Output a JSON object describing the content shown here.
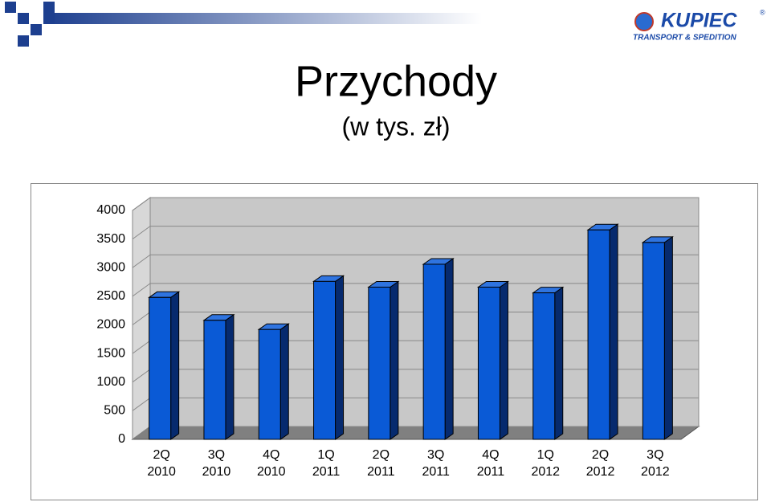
{
  "logo": {
    "name": "KUPIEC",
    "mark": "®",
    "tagline": "TRANSPORT & SPEDITION"
  },
  "chart_data": {
    "type": "bar3d",
    "title": "Przychody",
    "subtitle": "(w tys. zł)",
    "categories": [
      "2Q 2010",
      "3Q 2010",
      "4Q 2010",
      "1Q 2011",
      "2Q 2011",
      "3Q 2011",
      "4Q 2011",
      "1Q 2012",
      "2Q 2012",
      "3Q 2012"
    ],
    "values": [
      2480,
      2080,
      1920,
      2760,
      2660,
      3060,
      2660,
      2560,
      3660,
      3440
    ],
    "color": "#0a5ad6",
    "ylim": [
      0,
      4000
    ],
    "yticks": [
      0,
      500,
      1000,
      1500,
      2000,
      2500,
      3000,
      3500,
      4000
    ],
    "grid": true
  }
}
